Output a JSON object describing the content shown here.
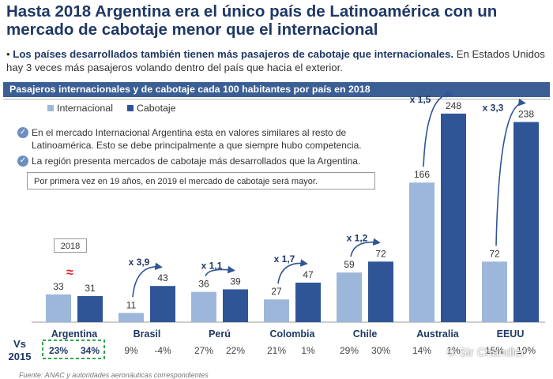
{
  "title": "Hasta 2018 Argentina era el único país de Latinoamérica con un mercado de cabotaje menor que el internacional",
  "bullet": {
    "bold": "Los países desarrollados también tienen más pasajeros de cabotaje que internacionales.",
    "rest": " En Estados Unidos hay 3 veces más pasajeros volando dentro del país que hacia el exterior."
  },
  "header": "Pasajeros internacionales y de cabotaje cada 100 habitantes por país en 2018",
  "checks": [
    "En el mercado Internacional Argentina esta en valores similares al resto de Latinoamérica. Esto se debe principalmente a que siempre hubo competencia.",
    "La región presenta mercados de cabotaje más desarrollados que la Argentina."
  ],
  "note_box": "Por primera vez en 19 años, en 2019 el mercado de cabotaje será mayor.",
  "year_box": "2018",
  "approx_mark": "≈",
  "vs_label": "Vs 2015",
  "footer": "Fuente: ANAC y autoridades aeronáuticas correspondientes",
  "watermark": "© Sir Chandler",
  "colors": {
    "internacional": "#9db7db",
    "cabotaje": "#2f5597",
    "title": "#1f3864",
    "header": "#3b5f95",
    "highlight_box": "#2eaa4a"
  },
  "chart_data": {
    "type": "bar",
    "title": "Pasajeros internacionales y de cabotaje cada 100 habitantes por país en 2018",
    "categories": [
      "Argentina",
      "Brasil",
      "Perú",
      "Colombia",
      "Chile",
      "Australia",
      "EEUU"
    ],
    "series": [
      {
        "name": "Internacional",
        "values": [
          33,
          11,
          36,
          27,
          59,
          166,
          72
        ],
        "vs2015": [
          "23%",
          "9%",
          "27%",
          "21%",
          "29%",
          "14%",
          "15%"
        ]
      },
      {
        "name": "Cabotaje",
        "values": [
          31,
          43,
          39,
          47,
          72,
          248,
          238
        ],
        "vs2015": [
          "34%",
          "-4%",
          "22%",
          "1%",
          "30%",
          "1%",
          "10%"
        ]
      }
    ],
    "ratios": [
      "",
      "x 3,9",
      "x 1,1",
      "x 1,7",
      "x 1,2",
      "x 1,5",
      "x 3,3"
    ],
    "legend_position": "top-left",
    "grid": false
  }
}
